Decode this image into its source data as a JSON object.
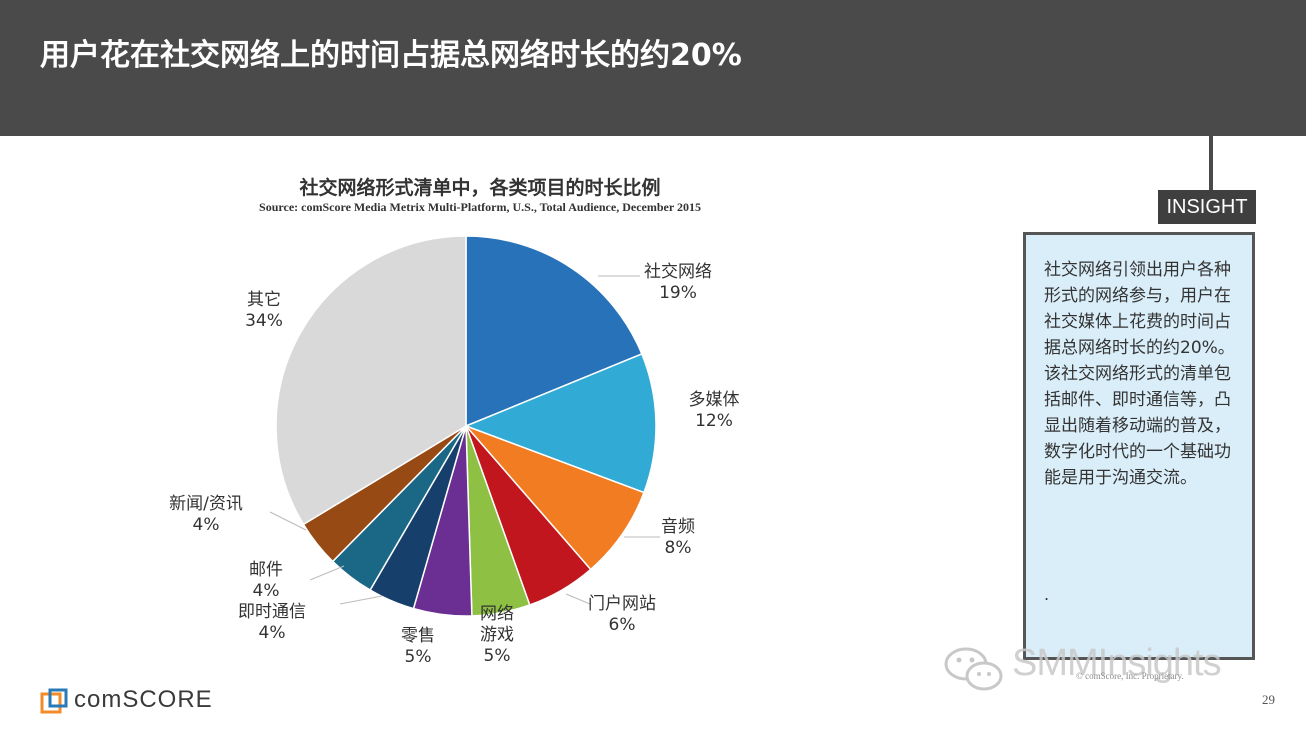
{
  "header": {
    "title": "用户花在社交网络上的时间占据总网络时长的约20%"
  },
  "chart_data": {
    "type": "pie",
    "title": "社交网络形式清单中，各类项目的时长比例",
    "subtitle": "Source: comScore Media Metrix Multi-Platform, U.S., Total Audience, December 2015",
    "slices": [
      {
        "label": "社交网络",
        "value": 19,
        "value_label": "19%",
        "color": "#2872b9"
      },
      {
        "label": "多媒体",
        "value": 12,
        "value_label": "12%",
        "color": "#31aad5"
      },
      {
        "label": "音频",
        "value": 8,
        "value_label": "8%",
        "color": "#f17c22"
      },
      {
        "label": "门户网站",
        "value": 6,
        "value_label": "6%",
        "color": "#c2161e"
      },
      {
        "label": "网络\n游戏",
        "value": 5,
        "value_label": "5%",
        "color": "#8dc043"
      },
      {
        "label": "零售",
        "value": 5,
        "value_label": "5%",
        "color": "#6b2e93"
      },
      {
        "label": "即时通信",
        "value": 4,
        "value_label": "4%",
        "color": "#173f6b"
      },
      {
        "label": "邮件",
        "value": 4,
        "value_label": "4%",
        "color": "#1b6886"
      },
      {
        "label": "新闻/资讯",
        "value": 4,
        "value_label": "4%",
        "color": "#974a14"
      },
      {
        "label": "其它",
        "value": 34,
        "value_label": "34%",
        "color": "#d9d9d9"
      }
    ]
  },
  "insight": {
    "tag": "INSIGHT",
    "text": "社交网络引领出用户各种形式的网络参与，用户在社交媒体上花费的时间占据总网络时长的约20%。该社交网络形式的清单包括邮件、即时通信等，凸显出随着移动端的普及，数字化时代的一个基础功能是用于沟通交流。",
    "dot": "."
  },
  "watermark": {
    "text": "SMMInsights",
    "small": "© comScore, Inc. Proprietary."
  },
  "footer": {
    "logo": "comSCORE",
    "page": "29"
  }
}
